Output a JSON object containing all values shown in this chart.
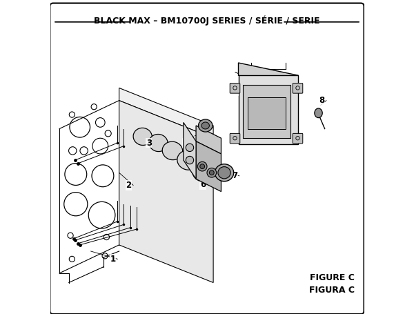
{
  "title": "BLACK MAX – BM10700J SERIES / SÉRIE / SERIE",
  "figure_label": "FIGURE C",
  "figura_label": "FIGURA C",
  "bg_color": "#ffffff",
  "border_color": "#000000",
  "text_color": "#000000",
  "title_fontsize": 9,
  "label_fontsize": 8.5
}
